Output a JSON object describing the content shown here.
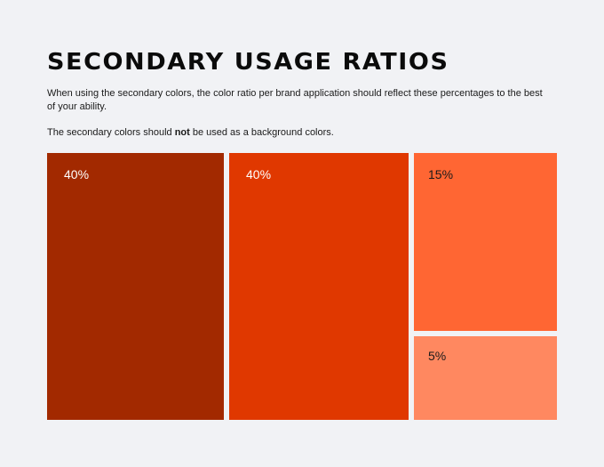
{
  "title": "SECONDARY USAGE RATIOS",
  "intro": "When using the secondary colors, the color ratio per brand application should reflect these percentages to the best of your ability.",
  "note": {
    "before": "The secondary colors should ",
    "emphasis": "not",
    "after": " be used as a background colors."
  },
  "blocks": [
    {
      "label": "40%",
      "color": "#a22900",
      "text_color": "#ffffff"
    },
    {
      "label": "40%",
      "color": "#e03800",
      "text_color": "#ffffff"
    },
    {
      "label": "15%",
      "color": "#ff6633",
      "text_color": "#1a1a1a"
    },
    {
      "label": "5%",
      "color": "#ff8860",
      "text_color": "#1a1a1a"
    }
  ]
}
